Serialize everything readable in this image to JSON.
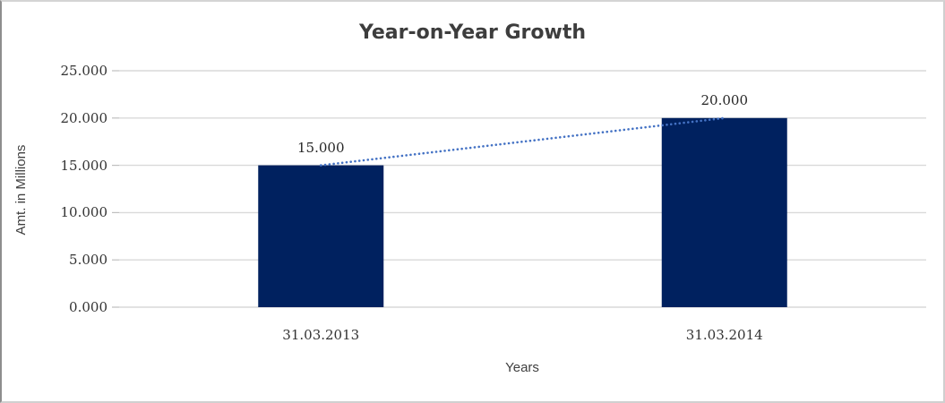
{
  "chart_data": {
    "type": "bar",
    "title": "Year-on-Year Growth",
    "xlabel": "Years",
    "ylabel": "Amt. in Millions",
    "categories": [
      "31.03.2013",
      "31.03.2014"
    ],
    "values": [
      15000,
      20000
    ],
    "data_labels": [
      "15.000",
      "20.000"
    ],
    "y_ticks": [
      {
        "value": 0,
        "label": "0.000"
      },
      {
        "value": 5000,
        "label": "5.000"
      },
      {
        "value": 10000,
        "label": "10.000"
      },
      {
        "value": 15000,
        "label": "15.000"
      },
      {
        "value": 20000,
        "label": "20.000"
      },
      {
        "value": 25000,
        "label": "25.000"
      }
    ],
    "ylim": [
      0,
      25000
    ],
    "grid": "horizontal",
    "legend": "none",
    "trendline": {
      "style": "dotted",
      "from_category": 0,
      "to_category": 1,
      "color": "#4472c4"
    },
    "colors": {
      "bar": "#00215f",
      "gridline": "#d9d9d9",
      "tick_mark": "#bfbfbf",
      "text": "#404040"
    }
  }
}
